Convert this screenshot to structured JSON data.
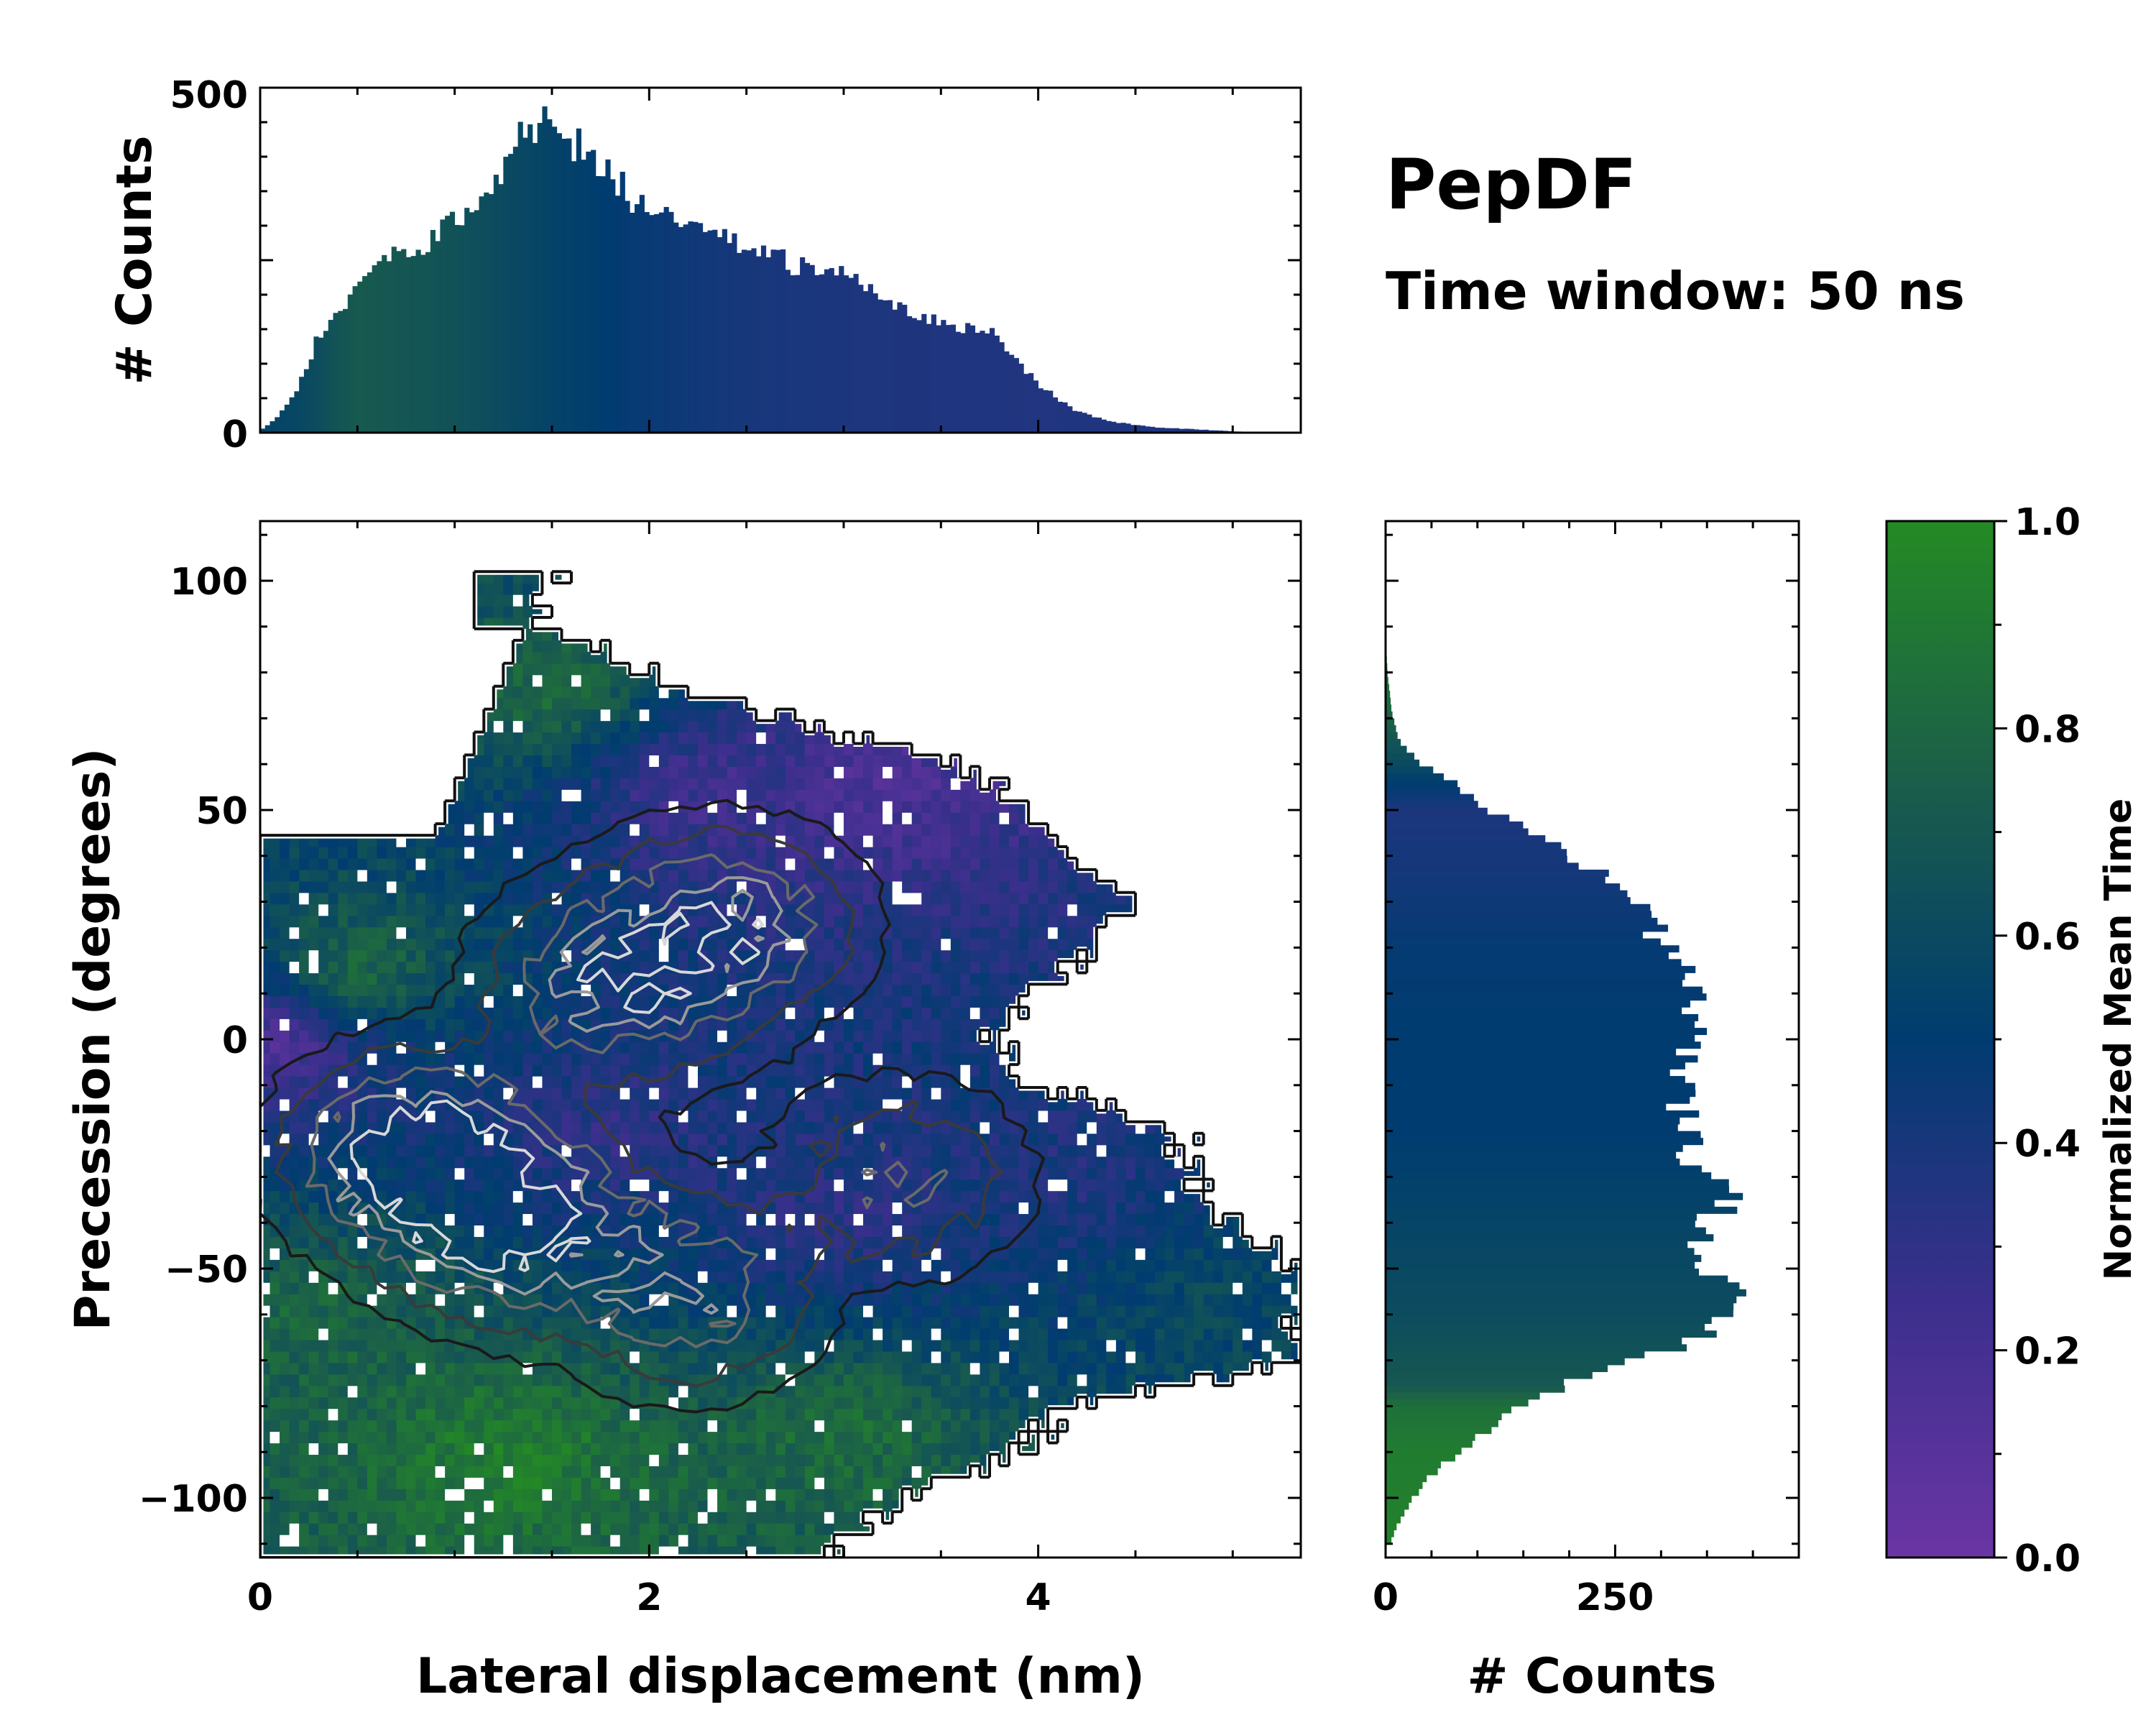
{
  "chart_data": [
    {
      "id": "top-histogram",
      "type": "bar",
      "title": "",
      "xlabel": "",
      "ylabel": "# Counts",
      "xlim": [
        0,
        5.35
      ],
      "ylim": [
        0,
        500
      ],
      "yticks": [
        "0",
        "500"
      ],
      "x_start": 0.0,
      "bin_width": 0.025,
      "anchors": [
        [
          0.0,
          3
        ],
        [
          0.1,
          25
        ],
        [
          0.2,
          70
        ],
        [
          0.3,
          140
        ],
        [
          0.4,
          180
        ],
        [
          0.5,
          210
        ],
        [
          0.6,
          240
        ],
        [
          0.7,
          255
        ],
        [
          0.8,
          260
        ],
        [
          0.9,
          280
        ],
        [
          1.0,
          305
        ],
        [
          1.1,
          335
        ],
        [
          1.2,
          365
        ],
        [
          1.3,
          420
        ],
        [
          1.4,
          450
        ],
        [
          1.5,
          440
        ],
        [
          1.6,
          425
        ],
        [
          1.7,
          400
        ],
        [
          1.8,
          370
        ],
        [
          1.9,
          345
        ],
        [
          2.0,
          315
        ],
        [
          2.2,
          295
        ],
        [
          2.4,
          275
        ],
        [
          2.6,
          255
        ],
        [
          2.8,
          240
        ],
        [
          3.0,
          225
        ],
        [
          3.2,
          200
        ],
        [
          3.4,
          170
        ],
        [
          3.6,
          155
        ],
        [
          3.8,
          140
        ],
        [
          3.9,
          100
        ],
        [
          4.0,
          70
        ],
        [
          4.2,
          30
        ],
        [
          4.4,
          15
        ],
        [
          4.6,
          8
        ],
        [
          4.8,
          5
        ],
        [
          5.0,
          2
        ],
        [
          5.2,
          0
        ]
      ],
      "color_anchors": [
        [
          0.0,
          0.55
        ],
        [
          0.2,
          0.58
        ],
        [
          0.5,
          0.72
        ],
        [
          1.0,
          0.66
        ],
        [
          1.5,
          0.55
        ],
        [
          2.0,
          0.46
        ],
        [
          2.5,
          0.4
        ],
        [
          3.0,
          0.38
        ],
        [
          4.0,
          0.36
        ],
        [
          5.2,
          0.38
        ]
      ]
    },
    {
      "id": "main-heatmap",
      "type": "heatmap",
      "title": "",
      "xlabel": "Lateral displacement (nm)",
      "ylabel": "Precession (degrees)",
      "xlim": [
        0,
        5.35
      ],
      "ylim": [
        -113,
        113
      ],
      "xticks": [
        "0",
        "2",
        "4"
      ],
      "yticks": [
        "100",
        "50",
        "0",
        "−50",
        "−100"
      ],
      "grid": false,
      "cell_deg": 2.5,
      "cell_nm": 0.05,
      "boundary_y": [
        -110,
        -100,
        -90,
        -80,
        -70,
        -60,
        -50,
        -40,
        -30,
        -20,
        -10,
        0,
        10,
        20,
        30,
        40,
        50,
        60,
        70,
        80,
        90,
        100
      ],
      "boundary_x": [
        3.0,
        3.3,
        3.9,
        4.2,
        5.35,
        5.35,
        5.35,
        5.0,
        4.8,
        4.7,
        4.0,
        3.8,
        4.0,
        4.3,
        4.5,
        4.2,
        4.0,
        3.6,
        2.7,
        2.0,
        1.5,
        1.5
      ],
      "density_peaks": [
        [
          0.8,
          -25,
          1.0
        ],
        [
          1.3,
          -40,
          0.9
        ],
        [
          1.8,
          12,
          0.7
        ],
        [
          2.4,
          25,
          0.7
        ],
        [
          2.2,
          -55,
          0.6
        ],
        [
          3.3,
          -30,
          0.4
        ]
      ],
      "color_regions": [
        [
          0.1,
          0,
          0.1
        ],
        [
          3.2,
          55,
          0.15
        ],
        [
          2.2,
          55,
          0.2
        ],
        [
          1.8,
          -20,
          0.3
        ],
        [
          3.0,
          -40,
          0.3
        ],
        [
          4.2,
          -30,
          0.35
        ],
        [
          4.8,
          -55,
          0.6
        ],
        [
          0.5,
          15,
          0.85
        ],
        [
          1.5,
          75,
          0.85
        ],
        [
          1.3,
          -90,
          0.95
        ],
        [
          3.0,
          -85,
          0.85
        ],
        [
          0.3,
          -60,
          0.8
        ]
      ],
      "contour_levels": [
        0.08,
        0.2,
        0.4,
        0.6,
        0.8
      ]
    },
    {
      "id": "right-histogram",
      "type": "bar",
      "orientation": "horizontal",
      "title": "",
      "xlabel": "# Counts",
      "ylabel": "",
      "xlim": [
        0,
        450
      ],
      "ylim": [
        -113,
        113
      ],
      "xticks": [
        "0",
        "250"
      ],
      "y_start": -110,
      "bin_width": 1.5,
      "anchors": [
        [
          -110,
          5
        ],
        [
          -105,
          15
        ],
        [
          -100,
          30
        ],
        [
          -95,
          50
        ],
        [
          -90,
          80
        ],
        [
          -85,
          115
        ],
        [
          -80,
          150
        ],
        [
          -75,
          200
        ],
        [
          -70,
          280
        ],
        [
          -65,
          340
        ],
        [
          -60,
          360
        ],
        [
          -55,
          375
        ],
        [
          -50,
          355
        ],
        [
          -45,
          330
        ],
        [
          -40,
          355
        ],
        [
          -35,
          370
        ],
        [
          -30,
          355
        ],
        [
          -25,
          330
        ],
        [
          -20,
          335
        ],
        [
          -15,
          320
        ],
        [
          -10,
          330
        ],
        [
          -5,
          320
        ],
        [
          0,
          330
        ],
        [
          5,
          335
        ],
        [
          10,
          340
        ],
        [
          15,
          320
        ],
        [
          20,
          305
        ],
        [
          25,
          290
        ],
        [
          30,
          280
        ],
        [
          35,
          250
        ],
        [
          40,
          200
        ],
        [
          45,
          160
        ],
        [
          50,
          110
        ],
        [
          55,
          80
        ],
        [
          60,
          40
        ],
        [
          65,
          15
        ],
        [
          70,
          8
        ],
        [
          75,
          5
        ],
        [
          80,
          2
        ],
        [
          85,
          1
        ],
        [
          90,
          0
        ]
      ],
      "color_anchors": [
        [
          -110,
          0.95
        ],
        [
          -90,
          0.92
        ],
        [
          -80,
          0.85
        ],
        [
          -75,
          0.7
        ],
        [
          -60,
          0.62
        ],
        [
          -40,
          0.56
        ],
        [
          -20,
          0.5
        ],
        [
          0,
          0.5
        ],
        [
          20,
          0.48
        ],
        [
          35,
          0.42
        ],
        [
          50,
          0.38
        ],
        [
          60,
          0.6
        ],
        [
          75,
          0.85
        ],
        [
          90,
          0.92
        ]
      ]
    },
    {
      "id": "colorbar",
      "type": "colorbar",
      "label": "Normalized Mean Time",
      "range": [
        0.0,
        1.0
      ],
      "ticks": [
        "0.0",
        "0.2",
        "0.4",
        "0.6",
        "0.8",
        "1.0"
      ],
      "stops": [
        [
          0.0,
          "#6a35a4"
        ],
        [
          0.25,
          "#3b2f8c"
        ],
        [
          0.5,
          "#003c70"
        ],
        [
          0.75,
          "#1b5e4a"
        ],
        [
          1.0,
          "#248a24"
        ]
      ]
    }
  ],
  "annotations": {
    "title": "PepDF",
    "subtitle": "Time window: 50 ns"
  }
}
